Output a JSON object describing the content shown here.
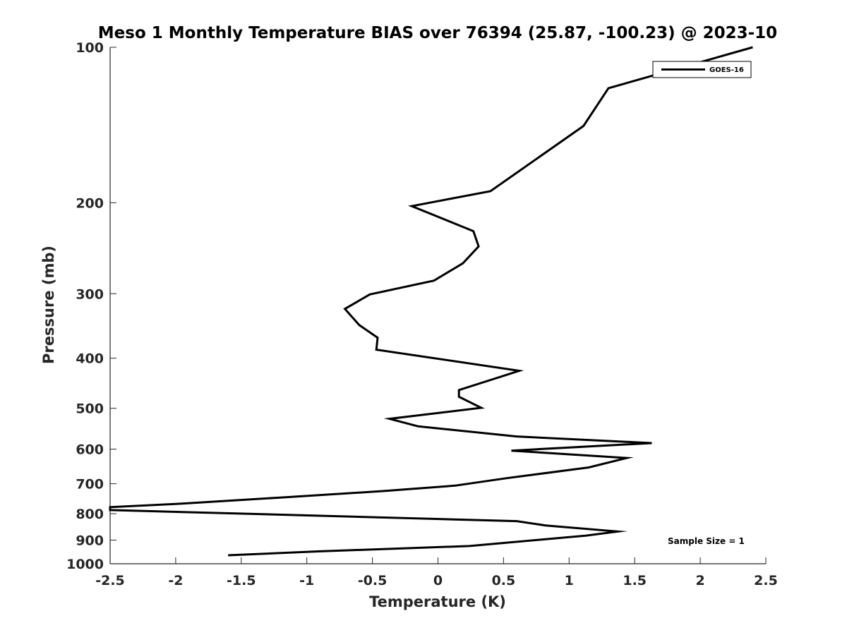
{
  "chart_data": {
    "type": "line",
    "title": "Meso 1 Monthly Temperature BIAS over 76394 (25.87, -100.23) @ 2023-10",
    "xlabel": "Temperature (K)",
    "ylabel": "Pressure (mb)",
    "xlim": [
      -2.5,
      2.5
    ],
    "ylim": [
      100,
      1000
    ],
    "y_scale": "log",
    "y_reversed": true,
    "grid": false,
    "x_ticks": [
      -2.5,
      -2,
      -1.5,
      -1,
      -0.5,
      0,
      0.5,
      1,
      1.5,
      2,
      2.5
    ],
    "x_tick_labels": [
      "-2.5",
      "-2",
      "-1.5",
      "-1",
      "-0.5",
      "0",
      "0.5",
      "1",
      "1.5",
      "2",
      "2.5"
    ],
    "y_ticks": [
      100,
      200,
      300,
      400,
      500,
      600,
      700,
      800,
      900,
      1000
    ],
    "y_tick_labels": [
      "100",
      "200",
      "300",
      "400",
      "500",
      "600",
      "700",
      "800",
      "900",
      "1000"
    ],
    "legend": {
      "position": "top-right",
      "entries": [
        "GOES-16"
      ]
    },
    "annotation": "Sample Size = 1",
    "series": [
      {
        "name": "GOES-16",
        "color": "#000000",
        "points": [
          [
            2.4,
            100
          ],
          [
            1.3,
            120
          ],
          [
            1.11,
            142
          ],
          [
            0.4,
            190
          ],
          [
            -0.2,
            203
          ],
          [
            0.27,
            227
          ],
          [
            0.31,
            243
          ],
          [
            0.19,
            262
          ],
          [
            -0.03,
            283
          ],
          [
            -0.52,
            301
          ],
          [
            -0.71,
            321
          ],
          [
            -0.6,
            345
          ],
          [
            -0.46,
            365
          ],
          [
            -0.47,
            385
          ],
          [
            0.62,
            423
          ],
          [
            0.16,
            461
          ],
          [
            0.16,
            475
          ],
          [
            0.33,
            499
          ],
          [
            -0.37,
            524
          ],
          [
            -0.15,
            542
          ],
          [
            0.6,
            567
          ],
          [
            1.63,
            584
          ],
          [
            0.56,
            604
          ],
          [
            1.44,
            624
          ],
          [
            1.15,
            651
          ],
          [
            0.52,
            683
          ],
          [
            0.13,
            706
          ],
          [
            -0.41,
            723
          ],
          [
            -1.15,
            743
          ],
          [
            -2.0,
            766
          ],
          [
            -2.5,
            777
          ],
          [
            -2.5,
            787
          ],
          [
            0.6,
            827
          ],
          [
            0.82,
            843
          ],
          [
            1.37,
            866
          ],
          [
            1.13,
            882
          ],
          [
            0.24,
            924
          ],
          [
            -0.9,
            946
          ],
          [
            -1.6,
            963
          ]
        ]
      }
    ]
  }
}
